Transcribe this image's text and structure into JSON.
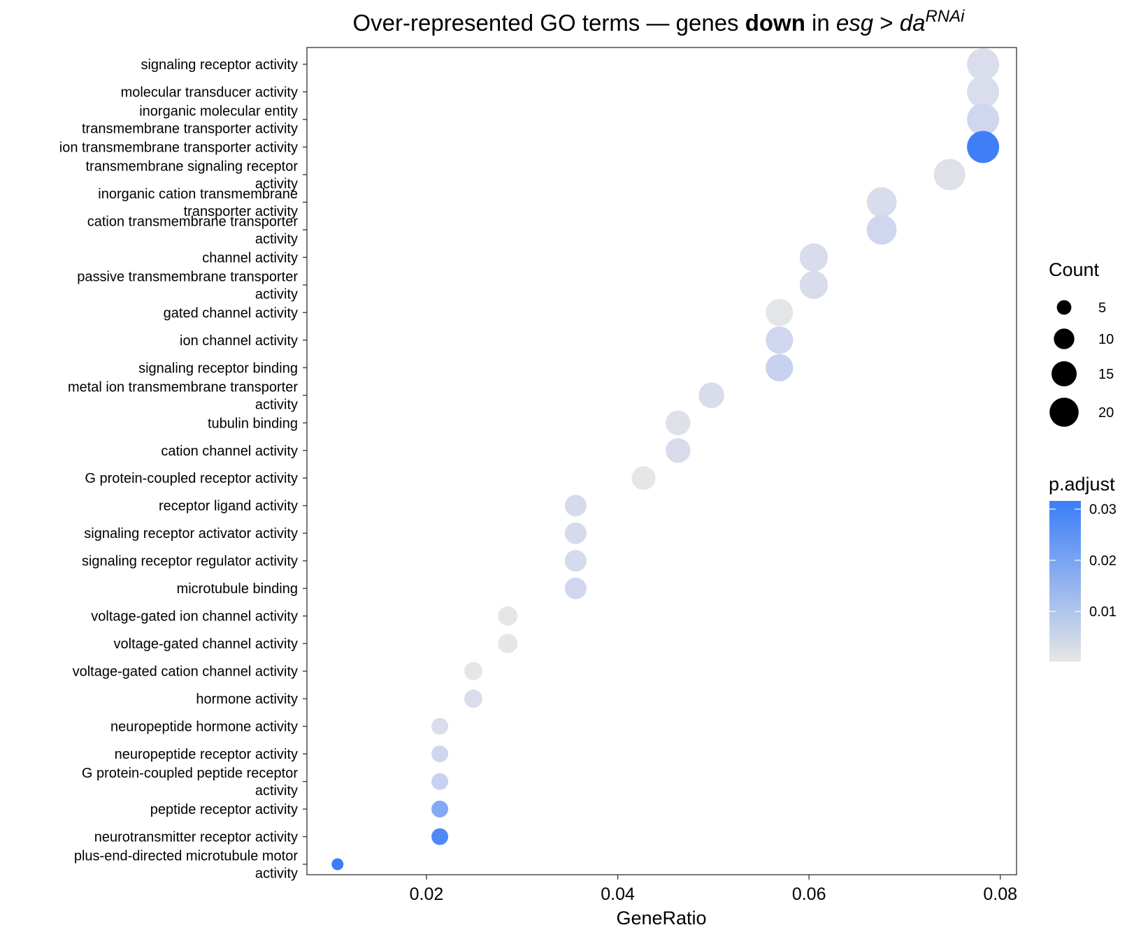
{
  "title": {
    "prefix": "Over-represented GO terms — genes ",
    "bold": "down",
    "middle": " in ",
    "italic": "esg",
    "gt": " > ",
    "italic2": "da",
    "superscript": "RNAi"
  },
  "chart_data": {
    "type": "scatter",
    "xlabel": "GeneRatio",
    "ylabel": "",
    "xlim": [
      0.0075,
      0.0817
    ],
    "xticks": [
      0.02,
      0.04,
      0.06,
      0.08
    ],
    "xtick_labels": [
      "0.02",
      "0.04",
      "0.06",
      "0.08"
    ],
    "grid": false,
    "legend_placement": "right",
    "size_legend": {
      "title": "Count",
      "breaks": [
        5,
        10,
        15,
        20
      ],
      "labels": [
        "5",
        "10",
        "15",
        "20"
      ]
    },
    "color_legend": {
      "title": "p.adjust",
      "low_color": "#e6e6e6",
      "high_color": "#3a7df8",
      "min": 0.0002,
      "max": 0.0316,
      "breaks": [
        0.01,
        0.02,
        0.03
      ],
      "labels": [
        "0.01",
        "0.02",
        "0.03"
      ]
    },
    "points": [
      {
        "term": [
          "signaling receptor activity"
        ],
        "gene_ratio": 0.0782,
        "count": 22,
        "p_adjust": 0.0048
      },
      {
        "term": [
          "molecular transducer activity"
        ],
        "gene_ratio": 0.0782,
        "count": 22,
        "p_adjust": 0.0048
      },
      {
        "term": [
          "inorganic molecular entity",
          "transmembrane transporter activity"
        ],
        "gene_ratio": 0.0782,
        "count": 22,
        "p_adjust": 0.0088
      },
      {
        "term": [
          "ion transmembrane transporter activity"
        ],
        "gene_ratio": 0.0782,
        "count": 22,
        "p_adjust": 0.031
      },
      {
        "term": [
          "transmembrane signaling receptor",
          "activity"
        ],
        "gene_ratio": 0.0747,
        "count": 21,
        "p_adjust": 0.0028
      },
      {
        "term": [
          "inorganic cation transmembrane",
          "transporter activity"
        ],
        "gene_ratio": 0.0676,
        "count": 19,
        "p_adjust": 0.0055
      },
      {
        "term": [
          "cation transmembrane transporter",
          "activity"
        ],
        "gene_ratio": 0.0676,
        "count": 19,
        "p_adjust": 0.0085
      },
      {
        "term": [
          "channel activity"
        ],
        "gene_ratio": 0.0605,
        "count": 17,
        "p_adjust": 0.0052
      },
      {
        "term": [
          "passive transmembrane transporter",
          "activity"
        ],
        "gene_ratio": 0.0605,
        "count": 17,
        "p_adjust": 0.0052
      },
      {
        "term": [
          "gated channel activity"
        ],
        "gene_ratio": 0.0569,
        "count": 16,
        "p_adjust": 0.0008
      },
      {
        "term": [
          "ion channel activity"
        ],
        "gene_ratio": 0.0569,
        "count": 16,
        "p_adjust": 0.0085
      },
      {
        "term": [
          "signaling receptor binding"
        ],
        "gene_ratio": 0.0569,
        "count": 16,
        "p_adjust": 0.0105
      },
      {
        "term": [
          "metal ion transmembrane transporter",
          "activity"
        ],
        "gene_ratio": 0.0498,
        "count": 14,
        "p_adjust": 0.0052
      },
      {
        "term": [
          "tubulin binding"
        ],
        "gene_ratio": 0.0463,
        "count": 13,
        "p_adjust": 0.0028
      },
      {
        "term": [
          "cation channel activity"
        ],
        "gene_ratio": 0.0463,
        "count": 13,
        "p_adjust": 0.0058
      },
      {
        "term": [
          "G protein-coupled receptor activity"
        ],
        "gene_ratio": 0.0427,
        "count": 12,
        "p_adjust": 0.0004
      },
      {
        "term": [
          "receptor ligand activity"
        ],
        "gene_ratio": 0.0356,
        "count": 10,
        "p_adjust": 0.0062
      },
      {
        "term": [
          "signaling receptor activator activity"
        ],
        "gene_ratio": 0.0356,
        "count": 10,
        "p_adjust": 0.0062
      },
      {
        "term": [
          "signaling receptor regulator activity"
        ],
        "gene_ratio": 0.0356,
        "count": 10,
        "p_adjust": 0.0066
      },
      {
        "term": [
          "microtubule binding"
        ],
        "gene_ratio": 0.0356,
        "count": 10,
        "p_adjust": 0.0085
      },
      {
        "term": [
          "voltage-gated ion channel activity"
        ],
        "gene_ratio": 0.0285,
        "count": 8,
        "p_adjust": 0.0004
      },
      {
        "term": [
          "voltage-gated channel activity"
        ],
        "gene_ratio": 0.0285,
        "count": 8,
        "p_adjust": 0.0004
      },
      {
        "term": [
          "voltage-gated cation channel activity"
        ],
        "gene_ratio": 0.0249,
        "count": 7,
        "p_adjust": 0.0002
      },
      {
        "term": [
          "hormone activity"
        ],
        "gene_ratio": 0.0249,
        "count": 7,
        "p_adjust": 0.0048
      },
      {
        "term": [
          "neuropeptide hormone activity"
        ],
        "gene_ratio": 0.0214,
        "count": 6,
        "p_adjust": 0.0048
      },
      {
        "term": [
          "neuropeptide receptor activity"
        ],
        "gene_ratio": 0.0214,
        "count": 6,
        "p_adjust": 0.0085
      },
      {
        "term": [
          "G protein-coupled peptide receptor",
          "activity"
        ],
        "gene_ratio": 0.0214,
        "count": 6,
        "p_adjust": 0.0105
      },
      {
        "term": [
          "peptide receptor activity"
        ],
        "gene_ratio": 0.0214,
        "count": 6,
        "p_adjust": 0.0205
      },
      {
        "term": [
          "neurotransmitter receptor activity"
        ],
        "gene_ratio": 0.0214,
        "count": 6,
        "p_adjust": 0.0285
      },
      {
        "term": [
          "plus-end-directed microtubule motor",
          "activity"
        ],
        "gene_ratio": 0.0107,
        "count": 3,
        "p_adjust": 0.0316
      }
    ]
  }
}
